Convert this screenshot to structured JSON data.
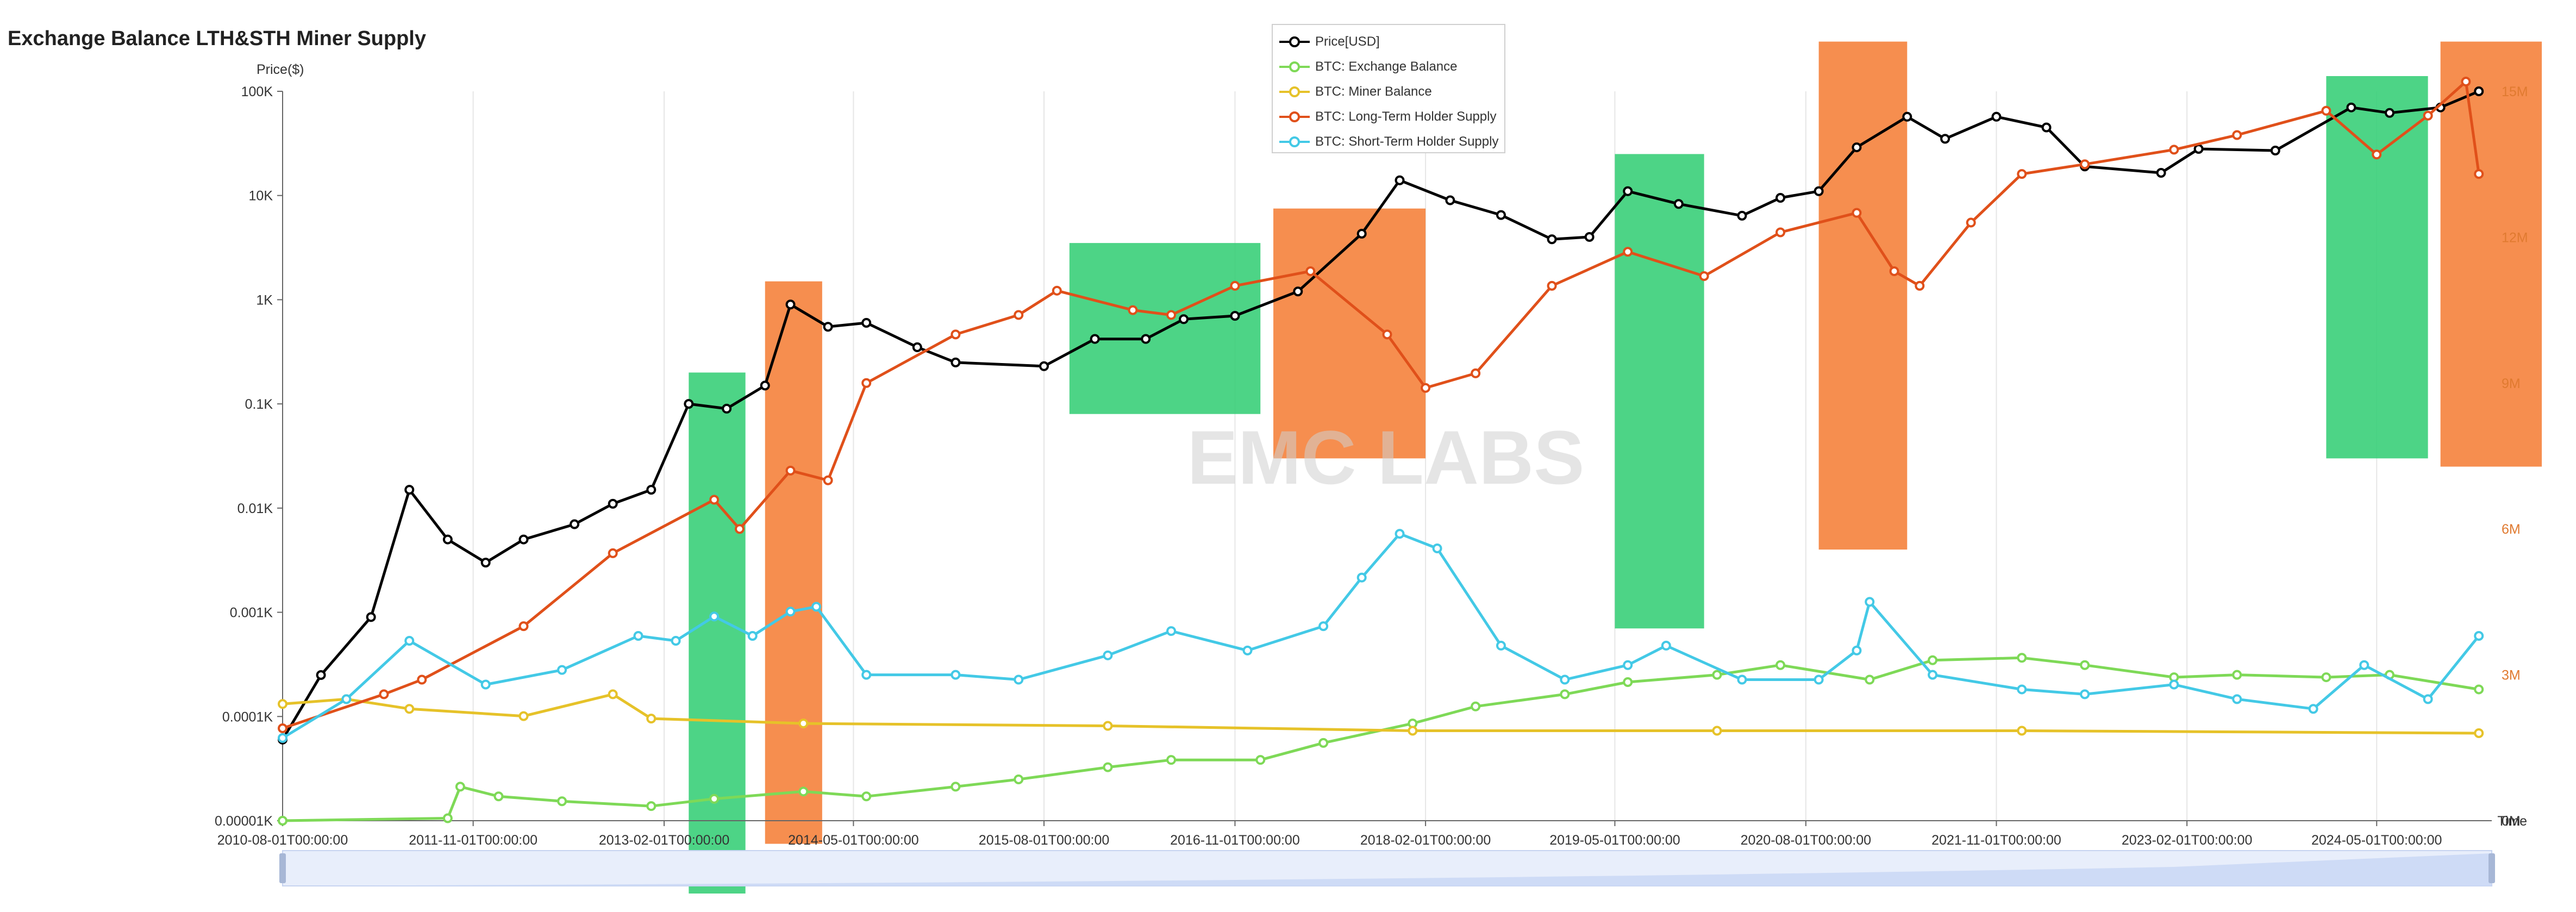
{
  "title": "Exchange Balance LTH&STH Miner Supply",
  "watermark": "EMC LABS",
  "chart_data": {
    "type": "line",
    "title": "Exchange Balance LTH&STH Miner Supply",
    "xlabel": "Time",
    "ylabel_left": "Price($)",
    "x_ticks": [
      "2010-08-01T00:00:00",
      "2011-11-01T00:00:00",
      "2013-02-01T00:00:00",
      "2014-05-01T00:00:00",
      "2015-08-01T00:00:00",
      "2016-11-01T00:00:00",
      "2018-02-01T00:00:00",
      "2019-05-01T00:00:00",
      "2020-08-01T00:00:00",
      "2021-11-01T00:00:00",
      "2023-02-01T00:00:00",
      "2024-05-01T00:00:00"
    ],
    "x_range": [
      "2010-08-01",
      "2025-02-01"
    ],
    "y_left": {
      "scale": "log",
      "ticks": [
        "0.00001K",
        "0.0001K",
        "0.001K",
        "0.01K",
        "0.1K",
        "1K",
        "10K",
        "100K"
      ],
      "range": [
        0.01,
        100000
      ]
    },
    "y_right": {
      "scale": "linear",
      "ticks": [
        "0M",
        "3M",
        "6M",
        "9M",
        "12M",
        "15M"
      ],
      "range": [
        0,
        15000000
      ]
    },
    "grid": "vertical",
    "legend_position": "top-center",
    "series": [
      {
        "name": "Price[USD]",
        "axis": "left",
        "color": "#000000",
        "points": [
          [
            "2010-08-01",
            0.06
          ],
          [
            "2010-11-01",
            0.25
          ],
          [
            "2011-03-01",
            0.9
          ],
          [
            "2011-06-01",
            15
          ],
          [
            "2011-09-01",
            5
          ],
          [
            "2011-12-01",
            3
          ],
          [
            "2012-03-01",
            5
          ],
          [
            "2012-07-01",
            7
          ],
          [
            "2012-10-01",
            11
          ],
          [
            "2013-01-01",
            15
          ],
          [
            "2013-04-01",
            100
          ],
          [
            "2013-07-01",
            90
          ],
          [
            "2013-10-01",
            150
          ],
          [
            "2013-12-01",
            900
          ],
          [
            "2014-03-01",
            550
          ],
          [
            "2014-06-01",
            600
          ],
          [
            "2014-10-01",
            350
          ],
          [
            "2015-01-01",
            250
          ],
          [
            "2015-08-01",
            230
          ],
          [
            "2015-12-01",
            420
          ],
          [
            "2016-04-01",
            420
          ],
          [
            "2016-07-01",
            650
          ],
          [
            "2016-11-01",
            700
          ],
          [
            "2017-04-01",
            1200
          ],
          [
            "2017-09-01",
            4300
          ],
          [
            "2017-12-01",
            14000
          ],
          [
            "2018-04-01",
            9000
          ],
          [
            "2018-08-01",
            6500
          ],
          [
            "2018-12-01",
            3800
          ],
          [
            "2019-03-01",
            4000
          ],
          [
            "2019-06-01",
            11000
          ],
          [
            "2019-10-01",
            8300
          ],
          [
            "2020-03-01",
            6400
          ],
          [
            "2020-06-01",
            9500
          ],
          [
            "2020-09-01",
            11000
          ],
          [
            "2020-12-01",
            29000
          ],
          [
            "2021-04-01",
            57000
          ],
          [
            "2021-07-01",
            35000
          ],
          [
            "2021-11-01",
            57000
          ],
          [
            "2022-03-01",
            45000
          ],
          [
            "2022-06-01",
            19000
          ],
          [
            "2022-12-01",
            16500
          ],
          [
            "2023-03-01",
            28000
          ],
          [
            "2023-09-01",
            27000
          ],
          [
            "2024-03-01",
            70000
          ],
          [
            "2024-06-01",
            62000
          ],
          [
            "2024-10-01",
            70000
          ],
          [
            "2025-01-01",
            100000
          ]
        ]
      },
      {
        "name": "BTC: Exchange Balance",
        "axis": "right",
        "color": "#7ed957",
        "points": [
          [
            "2010-08-01",
            0
          ],
          [
            "2011-09-01",
            50000.0
          ],
          [
            "2011-10-01",
            700000.0
          ],
          [
            "2012-01-01",
            500000.0
          ],
          [
            "2012-06-01",
            400000.0
          ],
          [
            "2013-01-01",
            300000.0
          ],
          [
            "2013-06-01",
            450000.0
          ],
          [
            "2014-01-01",
            600000.0
          ],
          [
            "2014-06-01",
            500000.0
          ],
          [
            "2015-01-01",
            700000.0
          ],
          [
            "2015-06-01",
            850000.0
          ],
          [
            "2016-01-01",
            1100000.0
          ],
          [
            "2016-06-01",
            1250000.0
          ],
          [
            "2017-01-01",
            1250000.0
          ],
          [
            "2017-06-01",
            1600000.0
          ],
          [
            "2018-01-01",
            2000000.0
          ],
          [
            "2018-06-01",
            2350000.0
          ],
          [
            "2019-01-01",
            2600000.0
          ],
          [
            "2019-06-01",
            2850000.0
          ],
          [
            "2020-01-01",
            3000000.0
          ],
          [
            "2020-06-01",
            3200000.0
          ],
          [
            "2021-01-01",
            2900000.0
          ],
          [
            "2021-06-01",
            3300000.0
          ],
          [
            "2022-01-01",
            3350000.0
          ],
          [
            "2022-06-01",
            3200000.0
          ],
          [
            "2023-01-01",
            2950000.0
          ],
          [
            "2023-06-01",
            3000000.0
          ],
          [
            "2024-01-01",
            2950000.0
          ],
          [
            "2024-06-01",
            3000000.0
          ],
          [
            "2025-01-01",
            2700000.0
          ]
        ]
      },
      {
        "name": "BTC: Miner Balance",
        "axis": "right",
        "color": "#e6c229",
        "points": [
          [
            "2010-08-01",
            2400000.0
          ],
          [
            "2011-01-01",
            2500000.0
          ],
          [
            "2011-06-01",
            2300000.0
          ],
          [
            "2012-03-01",
            2150000.0
          ],
          [
            "2012-10-01",
            2600000.0
          ],
          [
            "2013-01-01",
            2100000.0
          ],
          [
            "2014-01-01",
            2000000.0
          ],
          [
            "2016-01-01",
            1950000.0
          ],
          [
            "2018-01-01",
            1850000.0
          ],
          [
            "2020-01-01",
            1850000.0
          ],
          [
            "2022-01-01",
            1850000.0
          ],
          [
            "2025-01-01",
            1800000.0
          ]
        ]
      },
      {
        "name": "BTC: Long-Term Holder Supply",
        "axis": "right",
        "color": "#e0501a",
        "points": [
          [
            "2010-08-01",
            1900000.0
          ],
          [
            "2011-04-01",
            2600000.0
          ],
          [
            "2011-07-01",
            2900000.0
          ],
          [
            "2012-03-01",
            4000000.0
          ],
          [
            "2012-10-01",
            5500000.0
          ],
          [
            "2013-06-01",
            6600000.0
          ],
          [
            "2013-08-01",
            6000000.0
          ],
          [
            "2013-12-01",
            7200000.0
          ],
          [
            "2014-03-01",
            7000000.0
          ],
          [
            "2014-06-01",
            9000000.0
          ],
          [
            "2015-01-01",
            10000000.0
          ],
          [
            "2015-06-01",
            10400000.0
          ],
          [
            "2015-09-01",
            10900000.0
          ],
          [
            "2016-03-01",
            10500000.0
          ],
          [
            "2016-06-01",
            10400000.0
          ],
          [
            "2016-11-01",
            11000000.0
          ],
          [
            "2017-05-01",
            11300000.0
          ],
          [
            "2017-11-01",
            10000000.0
          ],
          [
            "2018-02-01",
            8900000.0
          ],
          [
            "2018-06-01",
            9200000.0
          ],
          [
            "2018-12-01",
            11000000.0
          ],
          [
            "2019-06-01",
            11700000.0
          ],
          [
            "2019-12-01",
            11200000.0
          ],
          [
            "2020-06-01",
            12100000.0
          ],
          [
            "2020-12-01",
            12500000.0
          ],
          [
            "2021-03-01",
            11300000.0
          ],
          [
            "2021-05-01",
            11000000.0
          ],
          [
            "2021-09-01",
            12300000.0
          ],
          [
            "2022-01-01",
            13300000.0
          ],
          [
            "2022-06-01",
            13500000.0
          ],
          [
            "2023-01-01",
            13800000.0
          ],
          [
            "2023-06-01",
            14100000.0
          ],
          [
            "2024-01-01",
            14600000.0
          ],
          [
            "2024-05-01",
            13700000.0
          ],
          [
            "2024-09-01",
            14500000.0
          ],
          [
            "2024-12-01",
            15200000.0
          ],
          [
            "2025-01-01",
            13300000.0
          ]
        ]
      },
      {
        "name": "BTC: Short-Term Holder Supply",
        "axis": "right",
        "color": "#43c9e6",
        "points": [
          [
            "2010-08-01",
            1700000.0
          ],
          [
            "2011-01-01",
            2500000.0
          ],
          [
            "2011-06-01",
            3700000.0
          ],
          [
            "2011-12-01",
            2800000.0
          ],
          [
            "2012-06-01",
            3100000.0
          ],
          [
            "2012-12-01",
            3800000.0
          ],
          [
            "2013-03-01",
            3700000.0
          ],
          [
            "2013-06-01",
            4200000.0
          ],
          [
            "2013-09-01",
            3800000.0
          ],
          [
            "2013-12-01",
            4300000.0
          ],
          [
            "2014-02-01",
            4400000.0
          ],
          [
            "2014-06-01",
            3000000.0
          ],
          [
            "2015-01-01",
            3000000.0
          ],
          [
            "2015-06-01",
            2900000.0
          ],
          [
            "2016-01-01",
            3400000.0
          ],
          [
            "2016-06-01",
            3900000.0
          ],
          [
            "2016-12-01",
            3500000.0
          ],
          [
            "2017-06-01",
            4000000.0
          ],
          [
            "2017-09-01",
            5000000.0
          ],
          [
            "2017-12-01",
            5900000.0
          ],
          [
            "2018-03-01",
            5600000.0
          ],
          [
            "2018-08-01",
            3600000.0
          ],
          [
            "2019-01-01",
            2900000.0
          ],
          [
            "2019-06-01",
            3200000.0
          ],
          [
            "2019-09-01",
            3600000.0
          ],
          [
            "2020-03-01",
            2900000.0
          ],
          [
            "2020-09-01",
            2900000.0
          ],
          [
            "2020-12-01",
            3500000.0
          ],
          [
            "2021-01-01",
            4500000.0
          ],
          [
            "2021-06-01",
            3000000.0
          ],
          [
            "2022-01-01",
            2700000.0
          ],
          [
            "2022-06-01",
            2600000.0
          ],
          [
            "2023-01-01",
            2800000.0
          ],
          [
            "2023-06-01",
            2500000.0
          ],
          [
            "2023-12-01",
            2300000.0
          ],
          [
            "2024-04-01",
            3200000.0
          ],
          [
            "2024-09-01",
            2500000.0
          ],
          [
            "2025-01-01",
            3800000.0
          ]
        ]
      }
    ],
    "highlight_boxes": [
      {
        "color": "#2ecc71",
        "x": [
          "2013-04-01",
          "2013-08-15"
        ],
        "axis": "left",
        "y": [
          0.002,
          200
        ]
      },
      {
        "color": "#f47a30",
        "x": [
          "2013-10-01",
          "2014-02-15"
        ],
        "axis": "left",
        "y": [
          0.006,
          1500
        ]
      },
      {
        "color": "#2ecc71",
        "x": [
          "2015-10-01",
          "2017-01-01"
        ],
        "axis": "left",
        "y": [
          80,
          3500
        ]
      },
      {
        "color": "#f47a30",
        "x": [
          "2017-02-01",
          "2018-02-01"
        ],
        "axis": "left",
        "y": [
          30,
          7500
        ]
      },
      {
        "color": "#2ecc71",
        "x": [
          "2019-05-01",
          "2019-12-01"
        ],
        "axis": "left",
        "y": [
          0.7,
          25000
        ]
      },
      {
        "color": "#f47a30",
        "x": [
          "2020-09-01",
          "2021-04-01"
        ],
        "axis": "left",
        "y": [
          4,
          300000
        ]
      },
      {
        "color": "#2ecc71",
        "x": [
          "2024-01-01",
          "2024-09-01"
        ],
        "axis": "left",
        "y": [
          30,
          140000
        ]
      },
      {
        "color": "#f47a30",
        "x": [
          "2024-10-01",
          "2025-06-01"
        ],
        "axis": "left",
        "y": [
          25,
          300000
        ]
      }
    ]
  }
}
